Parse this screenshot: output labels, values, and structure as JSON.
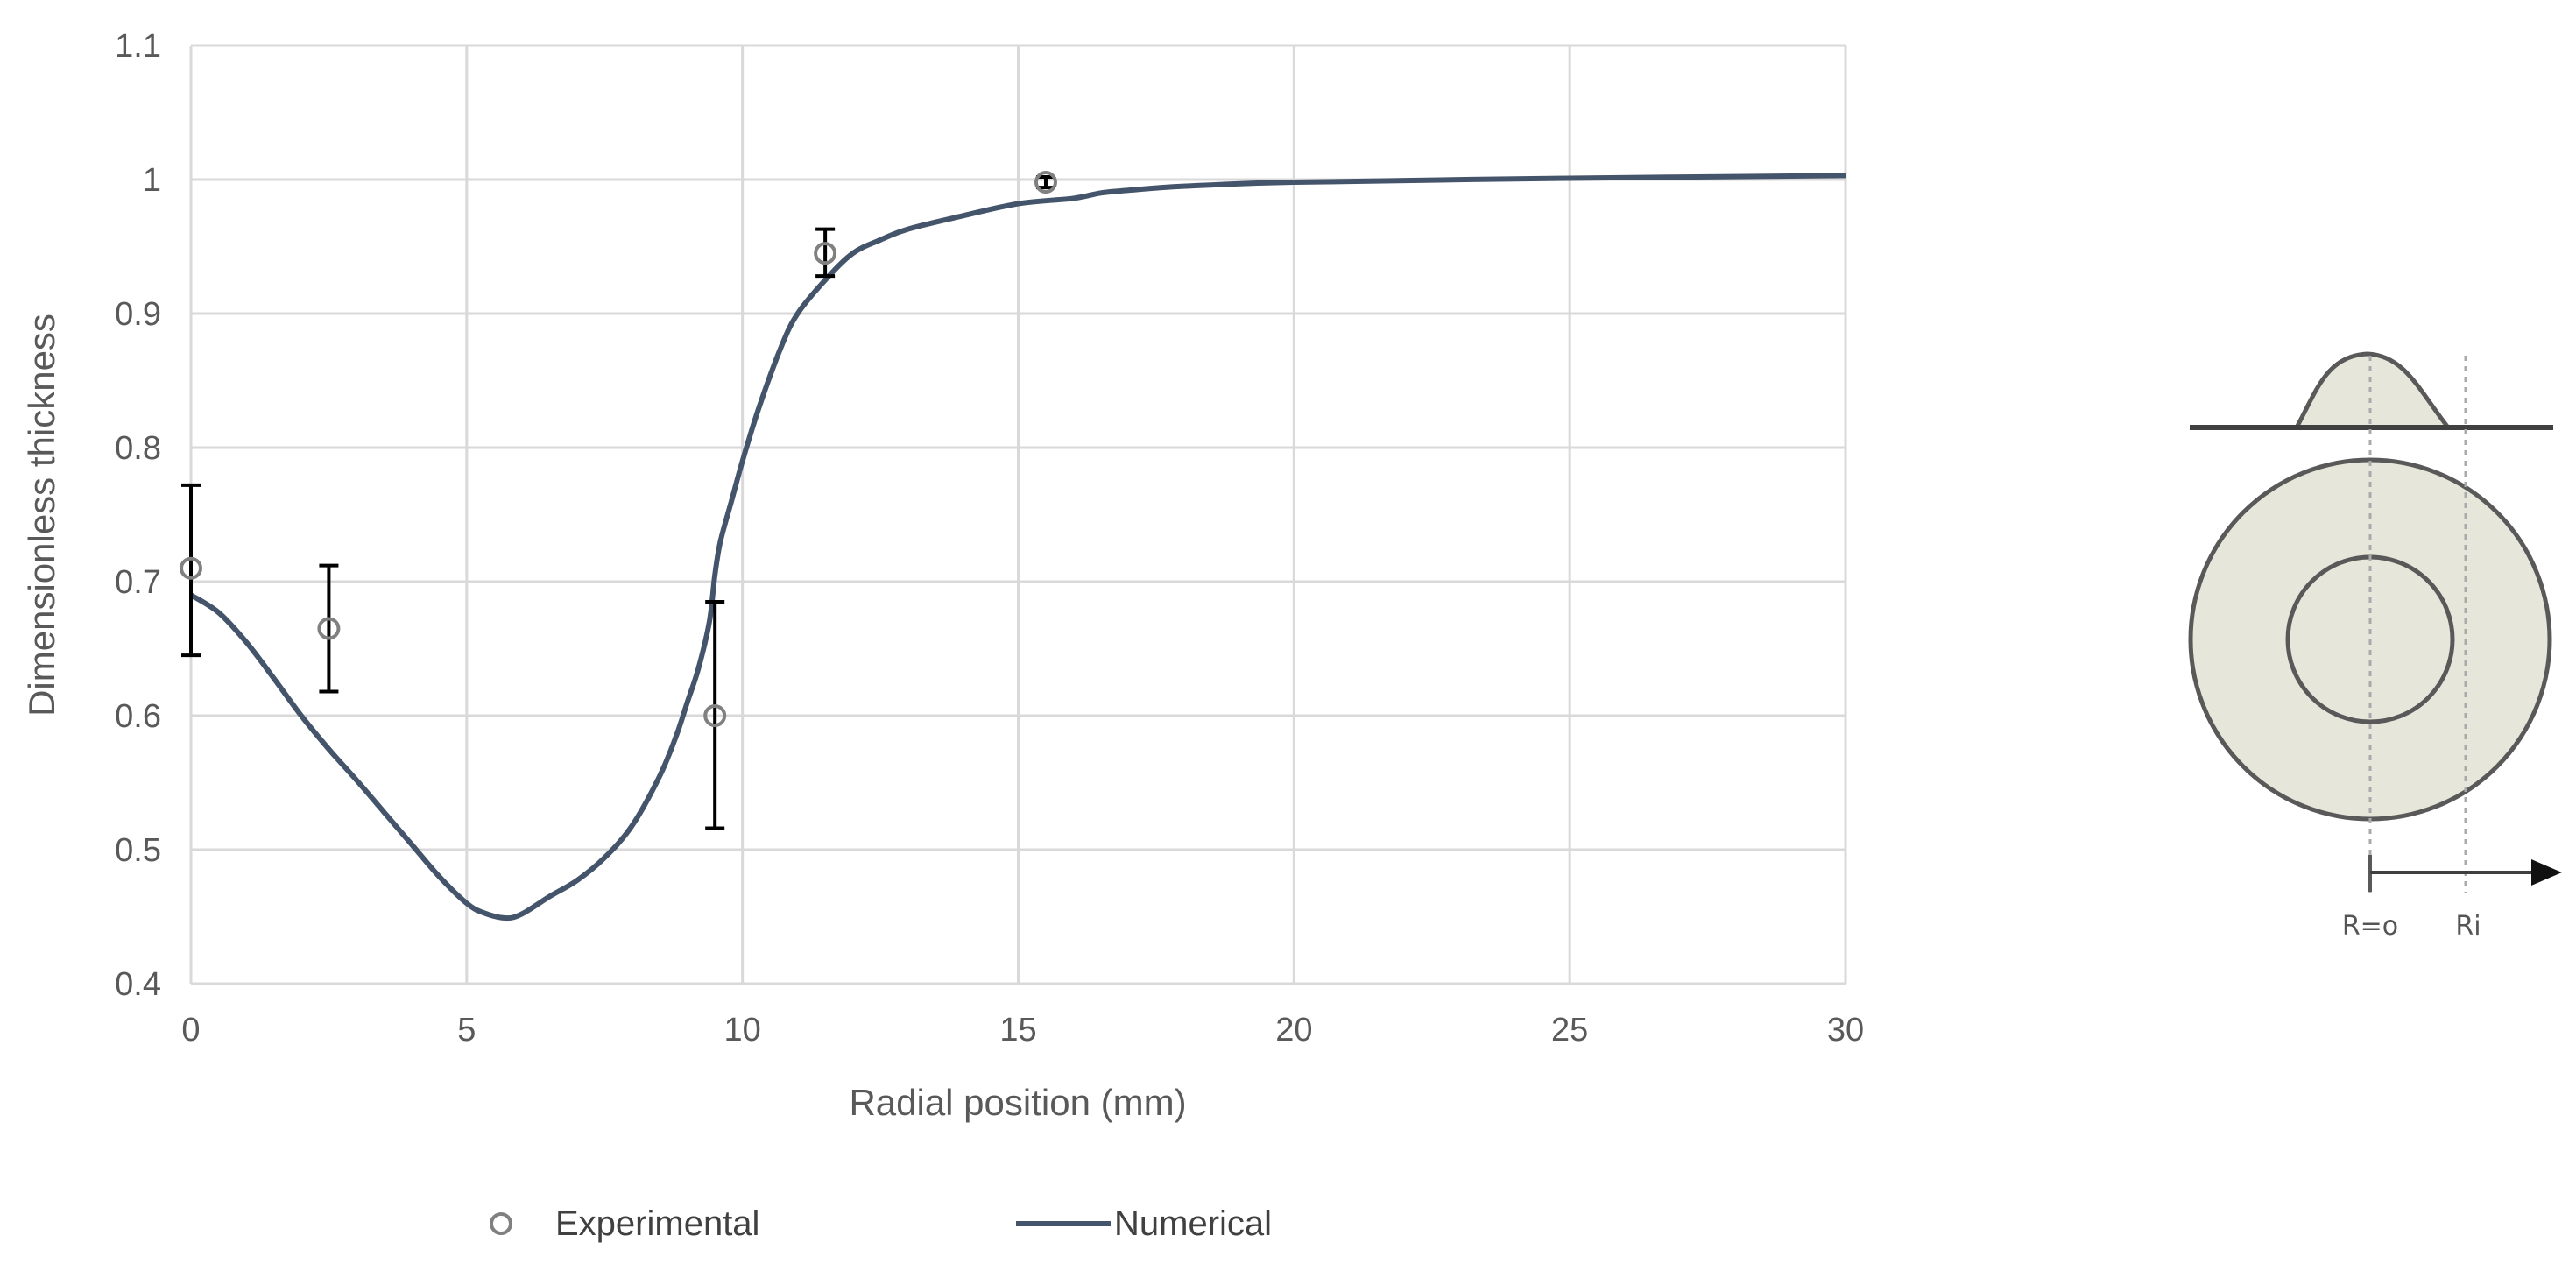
{
  "chart_data": {
    "type": "line",
    "title": "",
    "xlabel": "Radial position (mm)",
    "ylabel": "Dimensionless thickness",
    "xlim": [
      0,
      30
    ],
    "ylim": [
      0.4,
      1.1
    ],
    "xticks": [
      0,
      5,
      10,
      15,
      20,
      25,
      30
    ],
    "xtick_labels": [
      "0",
      "5",
      "10",
      "15",
      "20",
      "25",
      "30"
    ],
    "yticks": [
      0.4,
      0.5,
      0.6,
      0.7,
      0.8,
      0.9,
      1.0,
      1.1
    ],
    "ytick_labels": [
      "0.4",
      "0.5",
      "0.6",
      "0.7",
      "0.8",
      "0.9",
      "1",
      "1.1"
    ],
    "grid": true,
    "legend_position": "bottom",
    "series": [
      {
        "name": "Experimental",
        "kind": "scatter",
        "marker": "open-circle",
        "color": "#808080",
        "points": [
          {
            "x": 0.0,
            "y": 0.71,
            "err_low": 0.645,
            "err_high": 0.772
          },
          {
            "x": 2.5,
            "y": 0.665,
            "err_low": 0.618,
            "err_high": 0.712
          },
          {
            "x": 9.5,
            "y": 0.6,
            "err_low": 0.516,
            "err_high": 0.685
          },
          {
            "x": 11.5,
            "y": 0.945,
            "err_low": 0.928,
            "err_high": 0.963
          },
          {
            "x": 15.5,
            "y": 0.998,
            "err_low": 0.994,
            "err_high": 1.002
          }
        ]
      },
      {
        "name": "Numerical",
        "kind": "line",
        "color": "#44546a",
        "x": [
          0,
          0.5,
          1,
          1.5,
          2,
          2.5,
          3,
          3.5,
          4,
          4.5,
          5,
          5.3,
          5.7,
          6,
          6.5,
          7,
          7.5,
          8,
          8.5,
          8.8,
          9,
          9.2,
          9.4,
          9.5,
          9.6,
          9.8,
          10,
          10.3,
          10.7,
          11,
          11.5,
          12,
          12.5,
          13,
          14,
          15,
          16,
          16.5,
          17,
          18,
          20,
          25,
          30
        ],
        "y": [
          0.69,
          0.677,
          0.655,
          0.628,
          0.6,
          0.575,
          0.552,
          0.528,
          0.504,
          0.48,
          0.46,
          0.453,
          0.449,
          0.452,
          0.465,
          0.477,
          0.494,
          0.518,
          0.555,
          0.585,
          0.61,
          0.635,
          0.67,
          0.705,
          0.73,
          0.76,
          0.79,
          0.83,
          0.875,
          0.9,
          0.925,
          0.945,
          0.955,
          0.963,
          0.973,
          0.982,
          0.986,
          0.99,
          0.992,
          0.995,
          0.998,
          1.001,
          1.003
        ]
      }
    ]
  },
  "schematic": {
    "label_center": "R=o",
    "label_ri": "Ri",
    "fill_color": "#e6e6da",
    "stroke_color": "#595959"
  }
}
